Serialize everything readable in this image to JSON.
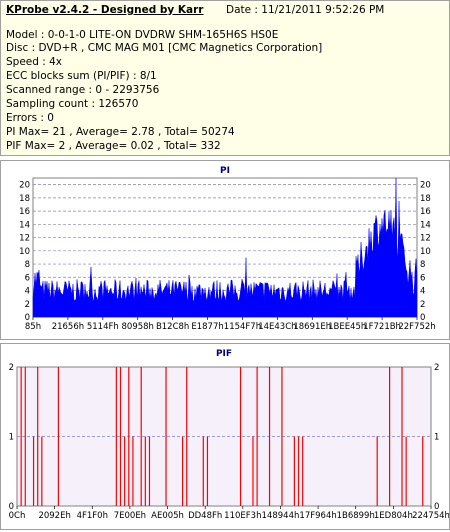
{
  "header": {
    "title": "KProbe v2.4.2 - Designed by Karr",
    "date": "Date : 11/21/2011 9:52:26 PM",
    "lines": [
      "Model : 0-0-1-0 LITE-ON DVDRW SHM-165H6S HS0E",
      "Disc : DVD+R , CMC MAG M01 [CMC Magnetics Corporation]",
      "Speed : 4x",
      "ECC blocks sum (PI/PIF) : 8/1",
      "Scanned range : 0 - 2293756",
      "Sampling count : 126570",
      "Errors : 0",
      "PI Max= 21 , Average= 2.78 , Total= 50274",
      "PIF Max= 2 , Average= 0.02 , Total= 332"
    ]
  },
  "chart_data": [
    {
      "type": "area",
      "title": "PI",
      "ylim": [
        0,
        21
      ],
      "yticks": [
        0,
        2,
        4,
        6,
        8,
        10,
        12,
        14,
        16,
        18,
        20
      ],
      "xticks": [
        "85h",
        "21656h",
        "5114Fh",
        "80958h",
        "B12C8h",
        "E1877h",
        "1154F7h",
        "14E43Ch",
        "18691Eh",
        "1BEE45h",
        "1F721Bh",
        "22F752h"
      ],
      "grid": true,
      "color": "#0000ff",
      "max": 21,
      "average": 2.78
    },
    {
      "type": "bar",
      "title": "PIF",
      "ylim": [
        0,
        2
      ],
      "yticks": [
        0,
        1,
        2
      ],
      "xticks": [
        "0Ch",
        "2092Eh",
        "4F1F0h",
        "7E00Eh",
        "AE005h",
        "DD48Fh",
        "110EF3h",
        "148944h",
        "17F964h",
        "1B6899h",
        "1ED804h",
        "224754h"
      ],
      "grid": true,
      "color": "#ff0000",
      "spikes_x_fraction": [
        0.01,
        0.02,
        0.04,
        0.05,
        0.06,
        0.1,
        0.24,
        0.25,
        0.26,
        0.27,
        0.28,
        0.3,
        0.31,
        0.32,
        0.36,
        0.4,
        0.41,
        0.45,
        0.46,
        0.54,
        0.57,
        0.58,
        0.61,
        0.64,
        0.67,
        0.68,
        0.69,
        0.87,
        0.9,
        0.93,
        0.94,
        0.98
      ],
      "spikes_value": [
        2,
        2,
        1,
        2,
        1,
        2,
        2,
        2,
        1,
        2,
        1,
        2,
        1,
        1,
        2,
        1,
        2,
        1,
        1,
        2,
        1,
        2,
        2,
        2,
        1,
        1,
        1,
        1,
        2,
        2,
        1,
        1
      ]
    }
  ]
}
